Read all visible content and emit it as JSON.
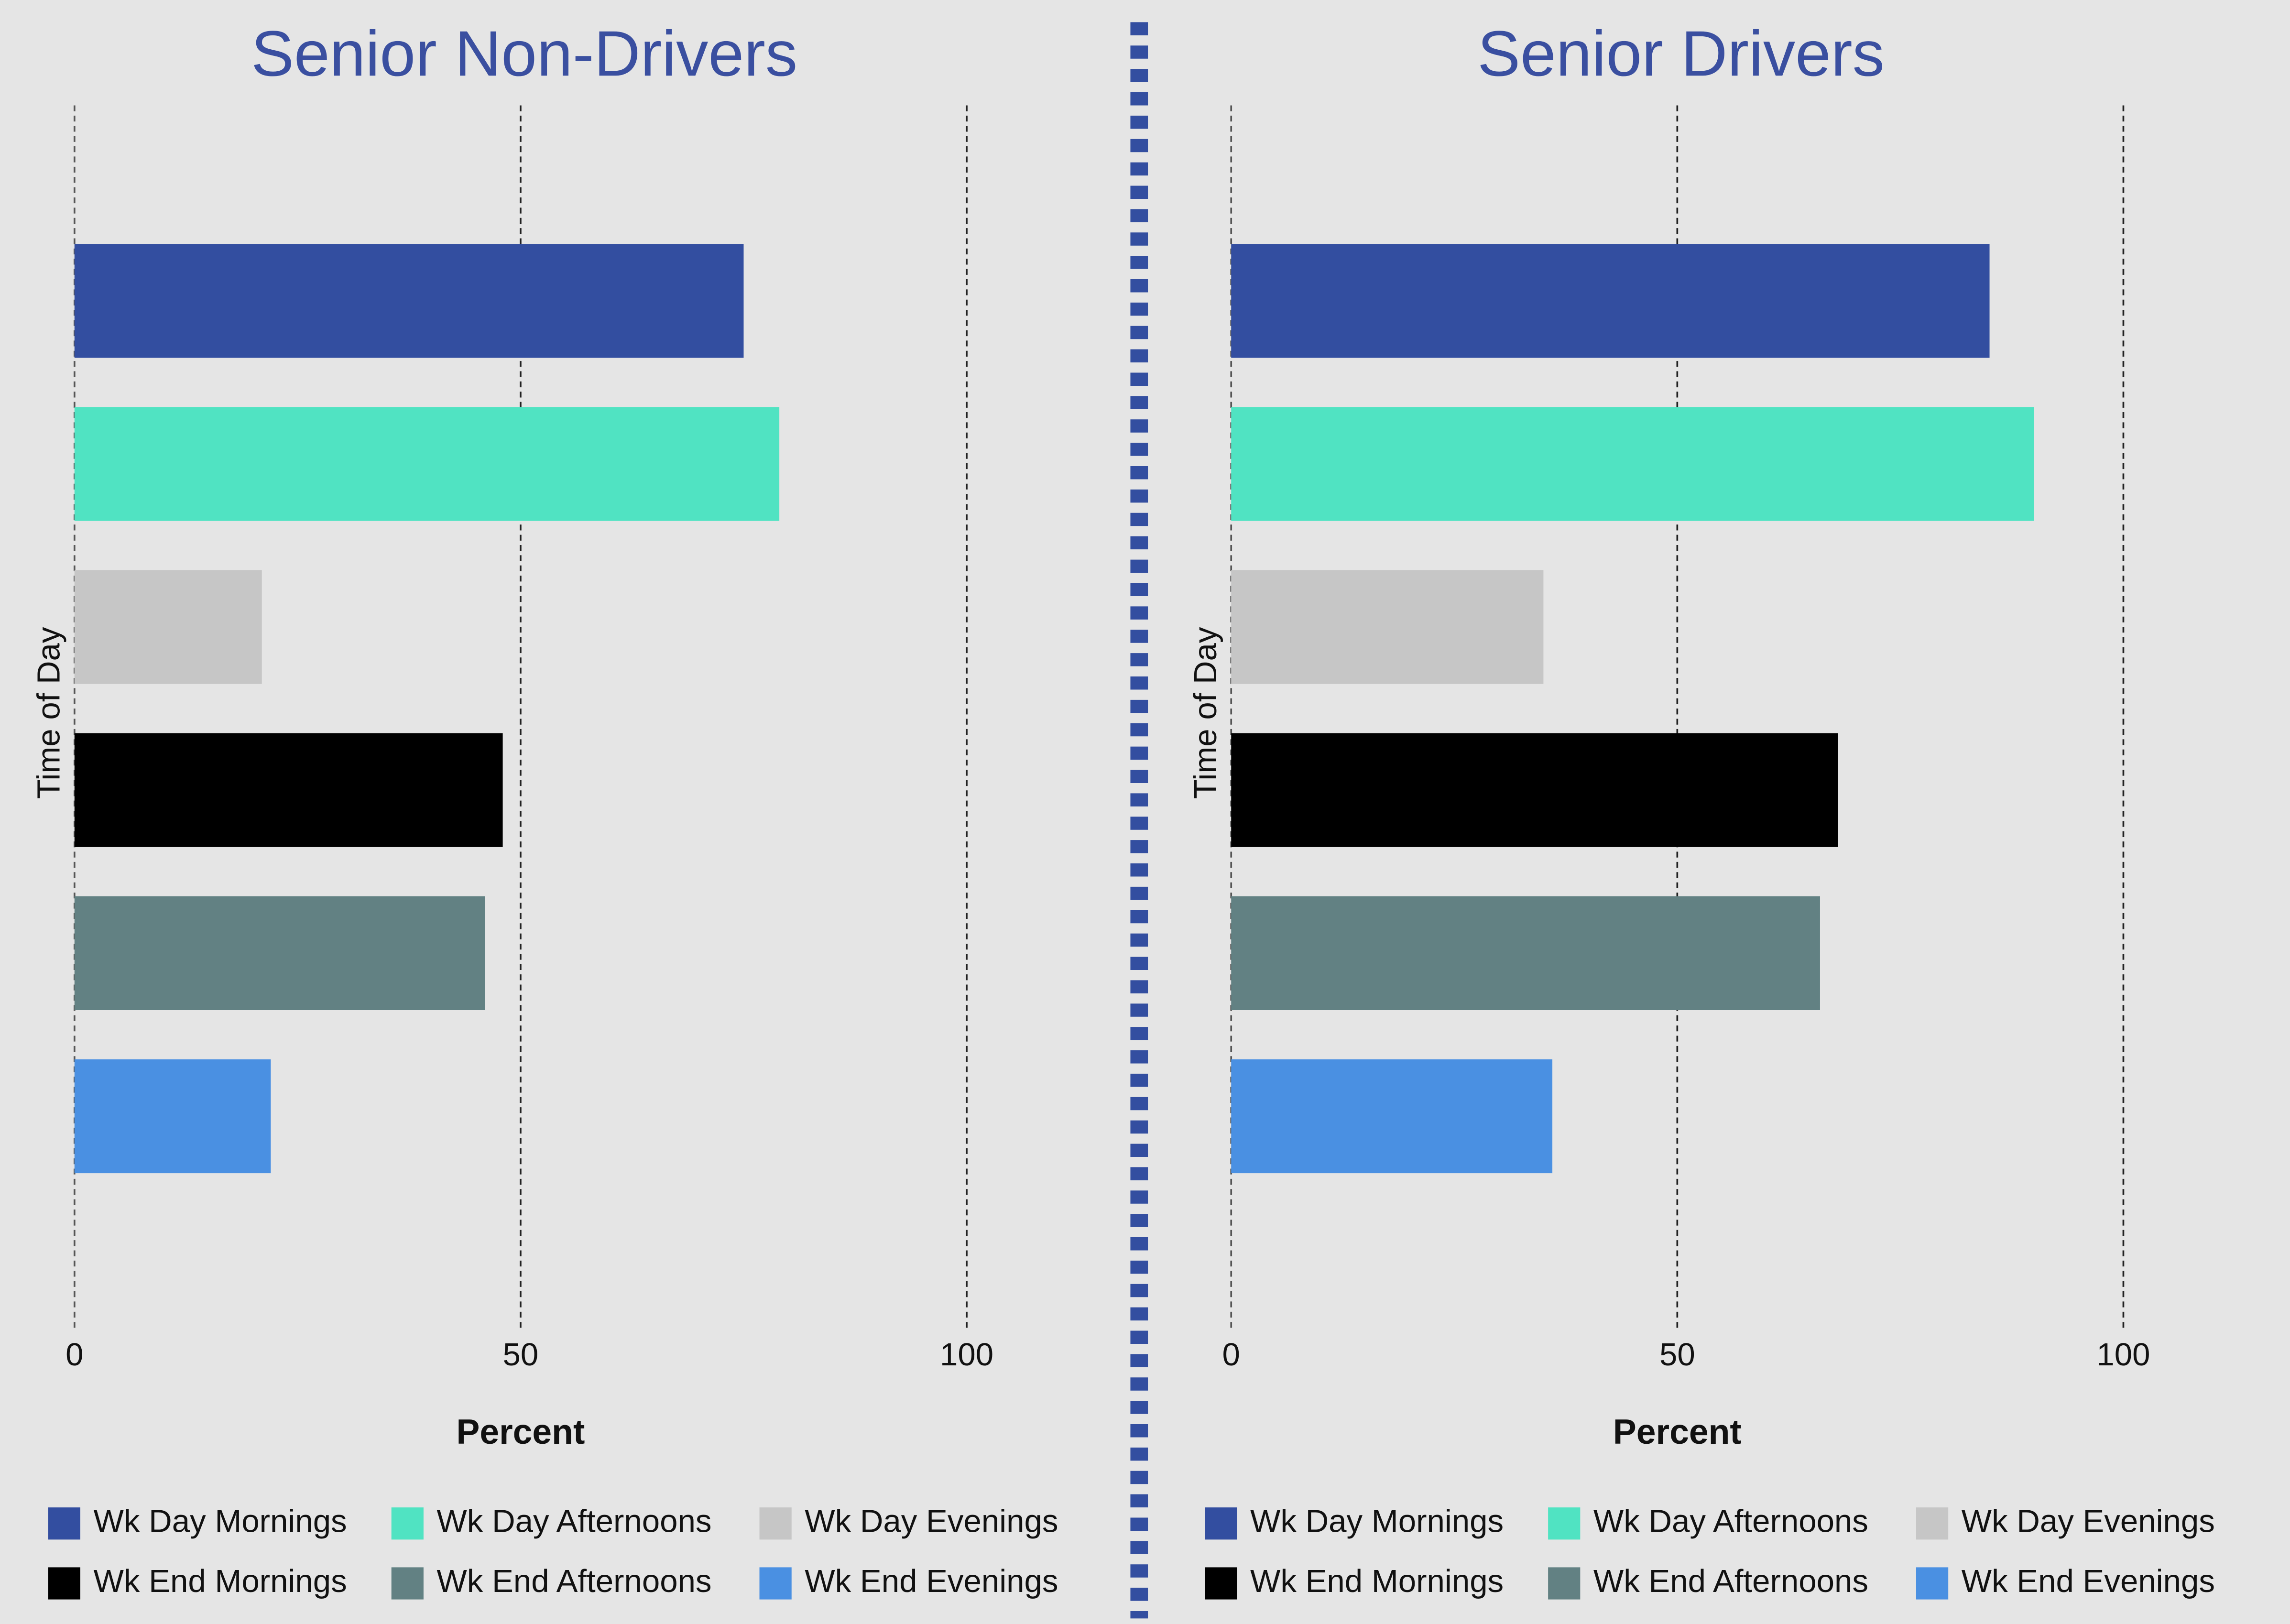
{
  "chart_data": [
    {
      "type": "bar",
      "orientation": "horizontal",
      "title": "Senior Non-Drivers",
      "xlabel": "Percent",
      "ylabel": "Time of Day",
      "categories": [
        "Wk Day Mornings",
        "Wk Day Afternoons",
        "Wk Day Evenings",
        "Wk End Mornings",
        "Wk End Afternoons",
        "Wk End Evenings"
      ],
      "values": [
        75,
        79,
        21,
        48,
        46,
        22
      ],
      "colors": [
        "#334ea0",
        "#50e3c2",
        "#c6c6c6",
        "#000000",
        "#628183",
        "#4a90e2"
      ],
      "xlim": [
        0,
        110
      ],
      "xticks": [
        0,
        50,
        100
      ],
      "grid": true
    },
    {
      "type": "bar",
      "orientation": "horizontal",
      "title": "Senior Drivers",
      "xlabel": "Percent",
      "ylabel": "Time of Day",
      "categories": [
        "Wk Day Mornings",
        "Wk Day Afternoons",
        "Wk Day Evenings",
        "Wk End Mornings",
        "Wk End Afternoons",
        "Wk End Evenings"
      ],
      "values": [
        85,
        90,
        35,
        68,
        66,
        36
      ],
      "colors": [
        "#334ea0",
        "#50e3c2",
        "#c6c6c6",
        "#000000",
        "#628183",
        "#4a90e2"
      ],
      "xlim": [
        0,
        110
      ],
      "xticks": [
        0,
        50,
        100
      ],
      "grid": true
    }
  ]
}
